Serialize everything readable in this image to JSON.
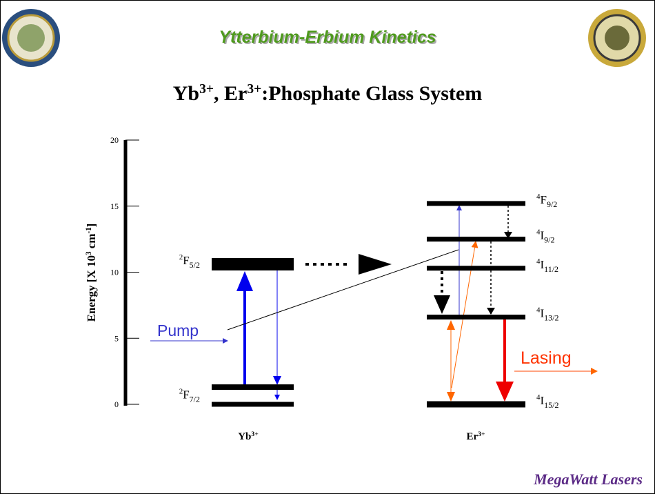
{
  "header": {
    "title": "Ytterbium-Erbium Kinetics",
    "subtitle": [
      {
        "text": "Yb"
      },
      {
        "sup": "3+"
      },
      {
        "text": ", Er"
      },
      {
        "sup": "3+"
      },
      {
        "text": ":Phosphate Glass System"
      }
    ]
  },
  "axis": {
    "label": [
      {
        "text": "Energy [X 10"
      },
      {
        "sup": "3"
      },
      {
        "text": " cm"
      },
      {
        "sup": "-1"
      },
      {
        "text": "]"
      }
    ],
    "lim": [
      0,
      20
    ],
    "ticks": [
      0,
      5,
      10,
      15,
      20
    ]
  },
  "ions": [
    {
      "name": [
        {
          "text": "Yb"
        },
        {
          "sup": "3+"
        }
      ],
      "levels": [
        {
          "label": {
            "sup": "2",
            "main": "F",
            "sub": "5/2"
          },
          "energy": 10.6
        },
        {
          "label": {
            "sup": "2",
            "main": "F",
            "sub": "7/2"
          },
          "energy": 0,
          "upper": 1.3
        }
      ]
    },
    {
      "name": [
        {
          "text": "Er"
        },
        {
          "sup": "3+"
        }
      ],
      "levels": [
        {
          "label": {
            "sup": "4",
            "main": "F",
            "sub": "9/2"
          },
          "energy": 15.2
        },
        {
          "label": {
            "sup": "4",
            "main": "I",
            "sub": "9/2"
          },
          "energy": 12.5
        },
        {
          "label": {
            "sup": "4",
            "main": "I",
            "sub": "11/2"
          },
          "energy": 10.3
        },
        {
          "label": {
            "sup": "4",
            "main": "I",
            "sub": "13/2"
          },
          "energy": 6.6
        },
        {
          "label": {
            "sup": "4",
            "main": "I",
            "sub": "15/2"
          },
          "energy": 0
        }
      ]
    }
  ],
  "annotations": {
    "pump": "Pump",
    "lasing": "Lasing"
  },
  "footer": "MegaWatt Lasers"
}
